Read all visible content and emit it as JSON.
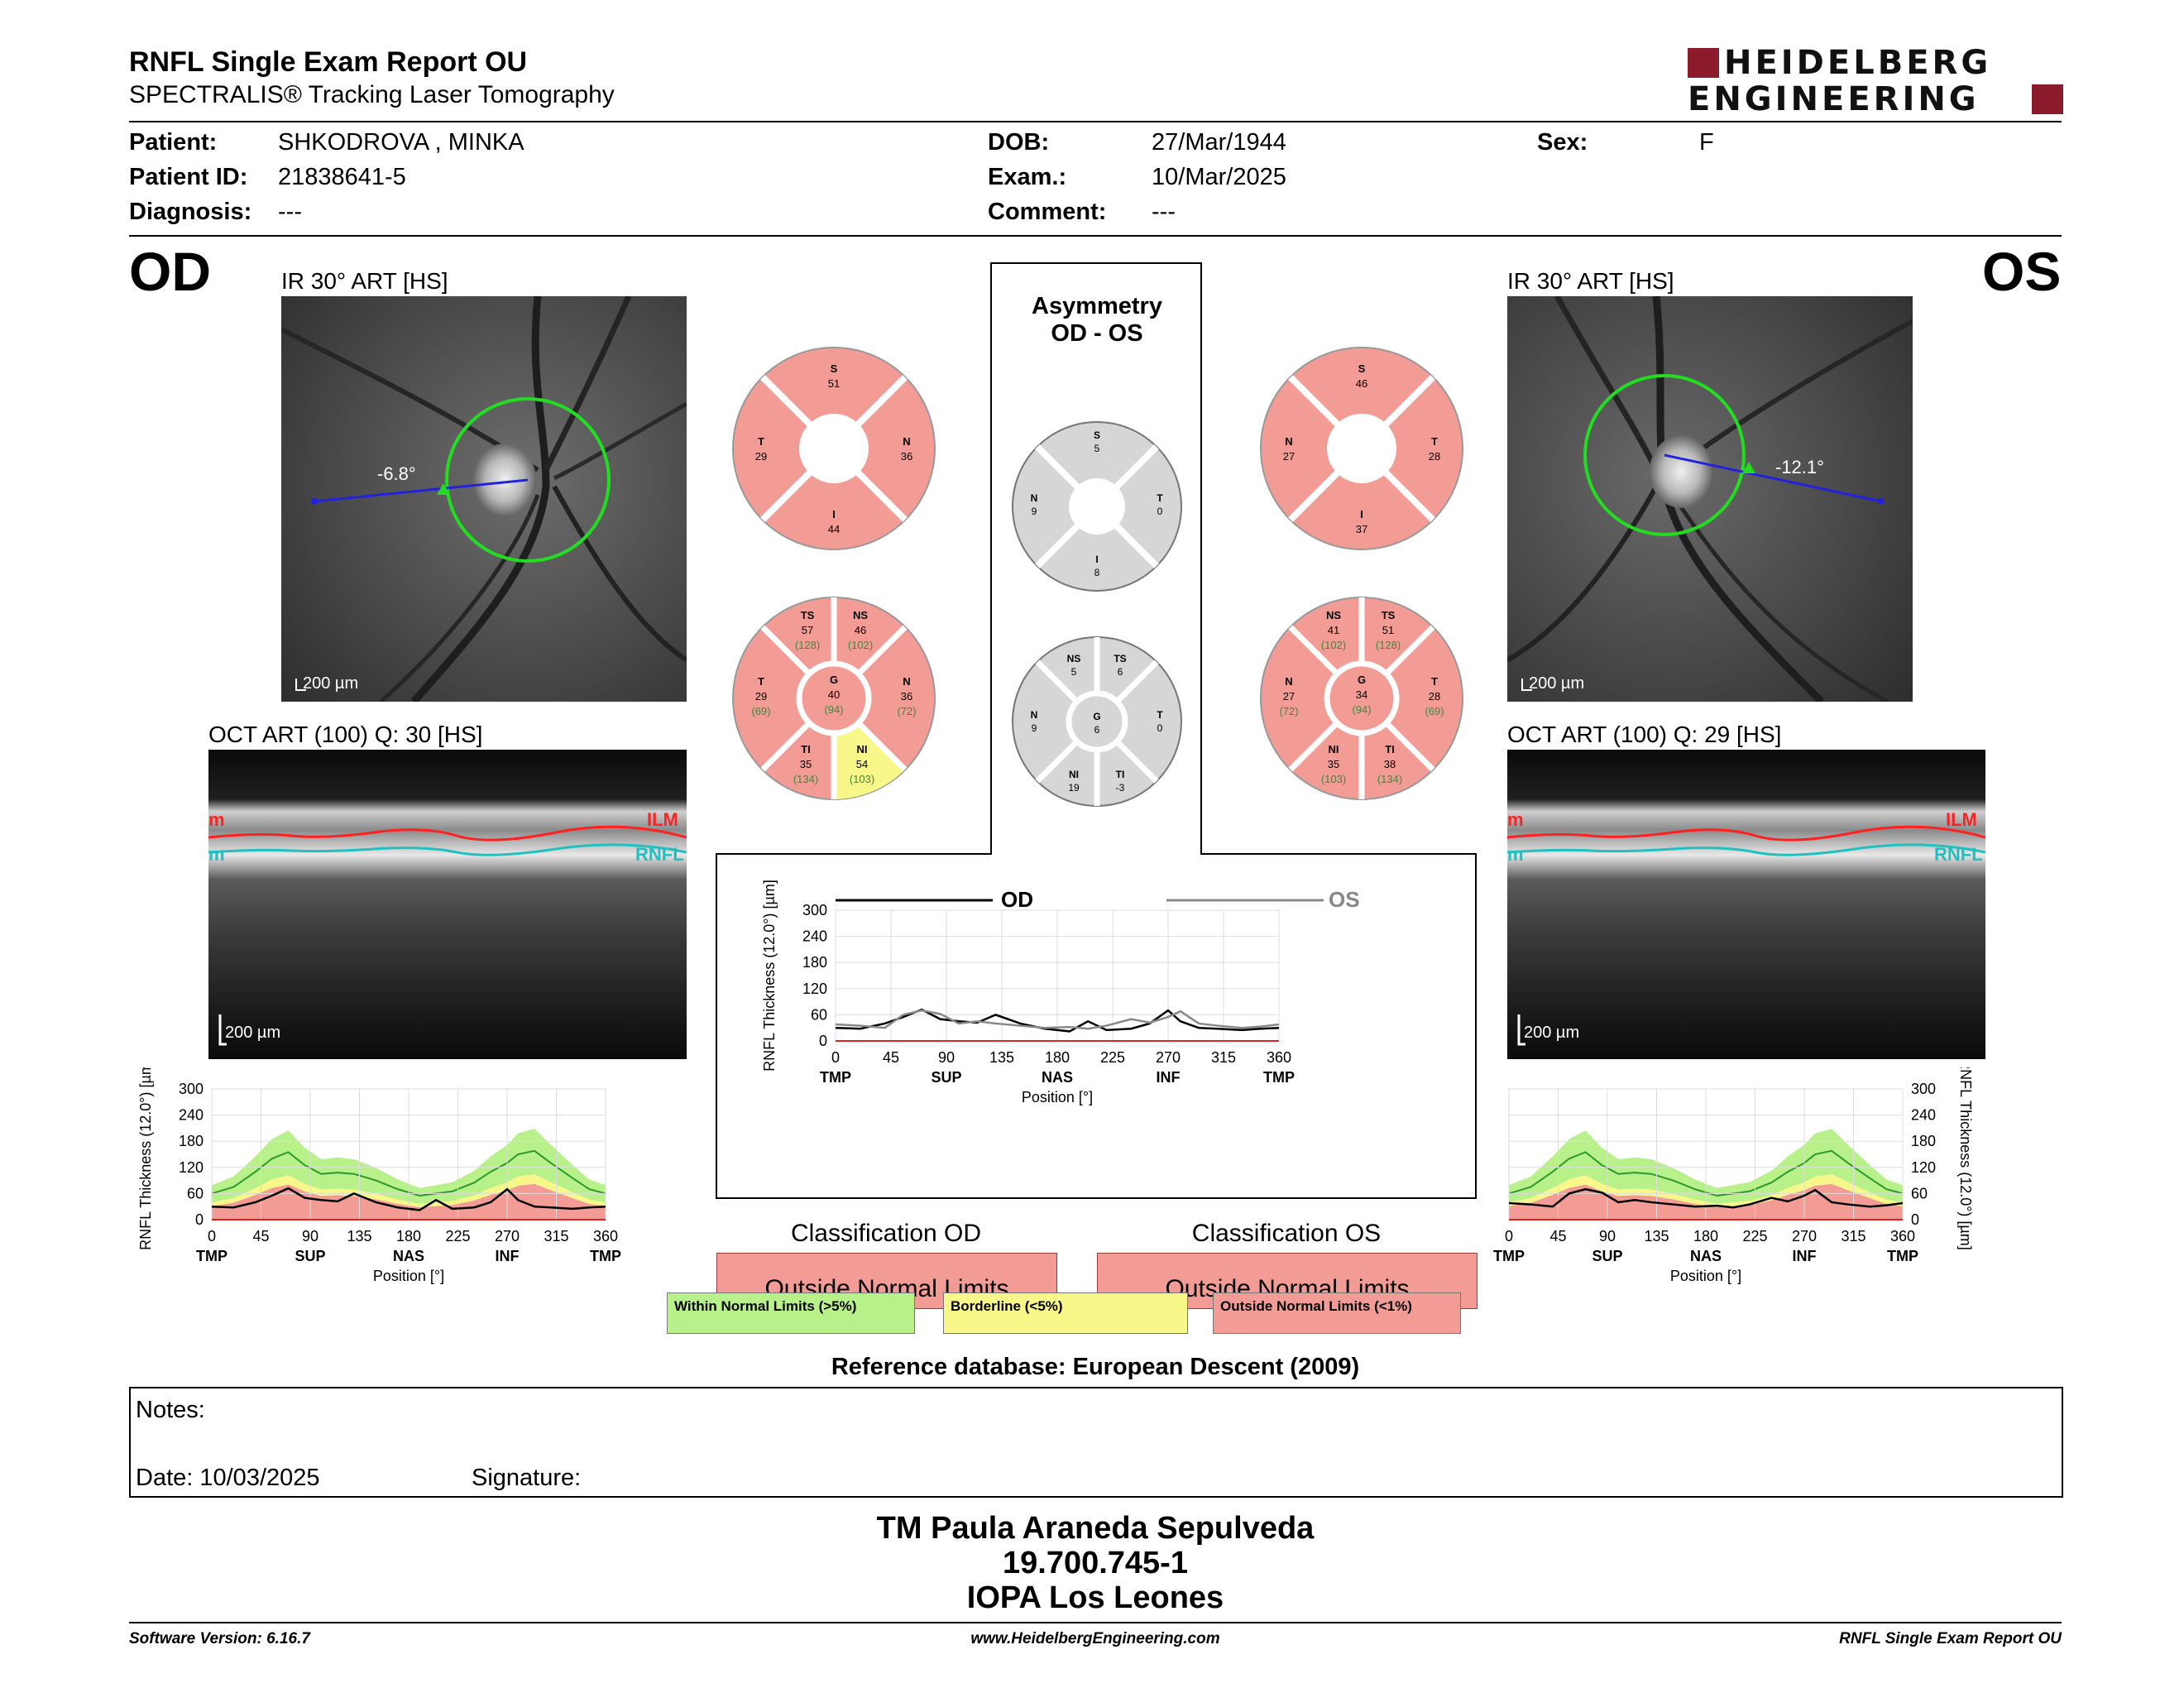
{
  "header": {
    "title": "RNFL Single Exam Report OU",
    "subtitle": "SPECTRALIS® Tracking Laser Tomography",
    "logo_line1": "HEIDELBERG",
    "logo_line2": "ENGINEERING"
  },
  "patient": {
    "patient_label": "Patient:",
    "patient_value": "SHKODROVA , MINKA",
    "id_label": "Patient ID:",
    "id_value": "21838641-5",
    "diagnosis_label": "Diagnosis:",
    "diagnosis_value": "---",
    "dob_label": "DOB:",
    "dob_value": "27/Mar/1944",
    "exam_label": "Exam.:",
    "exam_value": "10/Mar/2025",
    "comment_label": "Comment:",
    "comment_value": "---",
    "sex_label": "Sex:",
    "sex_value": "F"
  },
  "od": {
    "eye_label": "OD",
    "ir_title": "IR 30° ART [HS]",
    "angle": "-6.8°",
    "scale": "200 µm",
    "oct_title": "OCT ART (100) Q: 30 [HS]",
    "oct_scale": "200 µm",
    "ilm": "ILM",
    "rnfl": "RNFL",
    "seg_m": "m",
    "quad": {
      "S": "51",
      "N": "36",
      "I": "44",
      "T": "29"
    },
    "sectors": {
      "TS": {
        "v": "57",
        "r": "(128)"
      },
      "NS": {
        "v": "46",
        "r": "(102)"
      },
      "N": {
        "v": "36",
        "r": "(72)"
      },
      "NI": {
        "v": "54",
        "r": "(103)"
      },
      "TI": {
        "v": "35",
        "r": "(134)"
      },
      "T": {
        "v": "29",
        "r": "(69)"
      },
      "G": {
        "v": "40",
        "r": "(94)"
      }
    },
    "classification_title": "Classification OD",
    "classification": "Outside Normal Limits"
  },
  "os": {
    "eye_label": "OS",
    "ir_title": "IR 30° ART [HS]",
    "angle": "-12.1°",
    "scale": "200 µm",
    "oct_title": "OCT ART (100) Q: 29 [HS]",
    "oct_scale": "200 µm",
    "ilm": "ILM",
    "rnfl": "RNFL",
    "seg_m": "m",
    "quad": {
      "S": "46",
      "N": "27",
      "I": "37",
      "T": "28"
    },
    "sectors": {
      "NS": {
        "v": "41",
        "r": "(102)"
      },
      "TS": {
        "v": "51",
        "r": "(128)"
      },
      "T": {
        "v": "28",
        "r": "(69)"
      },
      "TI": {
        "v": "38",
        "r": "(134)"
      },
      "NI": {
        "v": "35",
        "r": "(103)"
      },
      "N": {
        "v": "27",
        "r": "(72)"
      },
      "G": {
        "v": "34",
        "r": "(94)"
      }
    },
    "classification_title": "Classification OS",
    "classification": "Outside Normal Limits"
  },
  "asymmetry": {
    "title1": "Asymmetry",
    "title2": "OD - OS",
    "quad": {
      "S": "5",
      "T": "0",
      "I": "8",
      "N": "9"
    },
    "sectors": {
      "NS": "5",
      "TS": "6",
      "T": "0",
      "TI": "-3",
      "NI": "19",
      "N": "9",
      "G": "6"
    }
  },
  "charts_text": {
    "ylabel": "RNFL Thickness (12.0°) [µm]",
    "xlabel": "Position [°]",
    "od_legend": "OD",
    "os_legend": "OS",
    "cat_tmp": "TMP",
    "cat_sup": "SUP",
    "cat_nas": "NAS",
    "cat_inf": "INF"
  },
  "chart_data": [
    {
      "type": "line",
      "id": "od-thickness-profile",
      "x_ticks": [
        0,
        45,
        90,
        135,
        180,
        225,
        270,
        315,
        360
      ],
      "y_ticks": [
        0,
        60,
        120,
        180,
        240,
        300
      ],
      "xlim": [
        0,
        360
      ],
      "ylim": [
        0,
        300
      ],
      "x": [
        0,
        20,
        40,
        55,
        70,
        85,
        100,
        115,
        130,
        150,
        170,
        190,
        205,
        220,
        240,
        255,
        270,
        280,
        295,
        310,
        330,
        345,
        360
      ],
      "series": [
        {
          "values": [
            30,
            28,
            40,
            55,
            72,
            50,
            45,
            42,
            60,
            40,
            28,
            22,
            45,
            25,
            28,
            40,
            70,
            45,
            30,
            28,
            25,
            28,
            30
          ]
        }
      ],
      "normal_mean": [
        60,
        75,
        110,
        140,
        155,
        125,
        105,
        108,
        105,
        90,
        70,
        55,
        60,
        65,
        85,
        110,
        130,
        150,
        158,
        130,
        95,
        70,
        60
      ],
      "categories": [
        "TMP",
        "SUP",
        "NAS",
        "INF",
        "TMP"
      ]
    },
    {
      "type": "line",
      "id": "asymmetry-profile",
      "x_ticks": [
        0,
        45,
        90,
        135,
        180,
        225,
        270,
        315,
        360
      ],
      "y_ticks": [
        0,
        60,
        120,
        180,
        240,
        300
      ],
      "xlim": [
        0,
        360
      ],
      "ylim": [
        0,
        300
      ],
      "x": [
        0,
        20,
        40,
        55,
        70,
        85,
        100,
        115,
        130,
        150,
        170,
        190,
        205,
        220,
        240,
        255,
        270,
        280,
        295,
        310,
        330,
        345,
        360
      ],
      "series": [
        {
          "name": "OD",
          "values": [
            30,
            28,
            40,
            55,
            72,
            50,
            45,
            42,
            60,
            40,
            28,
            22,
            45,
            25,
            28,
            40,
            70,
            45,
            30,
            28,
            25,
            28,
            30
          ]
        },
        {
          "name": "OS",
          "values": [
            38,
            35,
            30,
            60,
            70,
            62,
            40,
            45,
            40,
            35,
            30,
            32,
            28,
            35,
            50,
            42,
            55,
            68,
            40,
            35,
            30,
            33,
            38
          ]
        }
      ],
      "categories": [
        "TMP",
        "SUP",
        "NAS",
        "INF",
        "TMP"
      ]
    },
    {
      "type": "line",
      "id": "os-thickness-profile",
      "x_ticks": [
        0,
        45,
        90,
        135,
        180,
        225,
        270,
        315,
        360
      ],
      "y_ticks": [
        0,
        60,
        120,
        180,
        240,
        300
      ],
      "xlim": [
        0,
        360
      ],
      "ylim": [
        0,
        300
      ],
      "x": [
        0,
        20,
        40,
        55,
        70,
        85,
        100,
        115,
        130,
        150,
        170,
        190,
        205,
        220,
        240,
        255,
        270,
        280,
        295,
        310,
        330,
        345,
        360
      ],
      "series": [
        {
          "values": [
            38,
            35,
            30,
            60,
            70,
            62,
            40,
            45,
            40,
            35,
            30,
            32,
            28,
            35,
            50,
            42,
            55,
            68,
            40,
            35,
            30,
            33,
            38
          ]
        }
      ],
      "normal_mean": [
        60,
        75,
        110,
        140,
        155,
        125,
        105,
        108,
        105,
        90,
        70,
        55,
        60,
        65,
        85,
        110,
        130,
        150,
        158,
        130,
        95,
        70,
        60
      ],
      "categories": [
        "TMP",
        "SUP",
        "NAS",
        "INF",
        "TMP"
      ]
    }
  ],
  "legend": {
    "within": "Within Normal Limits (>5%)",
    "borderline": "Borderline (<5%)",
    "outside": "Outside Normal Limits (<1%)"
  },
  "reference": "Reference database: European Descent (2009)",
  "notes": {
    "notes_label": "Notes:",
    "date_label": "Date: 10/03/2025",
    "signature_label": "Signature:"
  },
  "footer": {
    "line1": "TM Paula Araneda Sepulveda",
    "line2": "19.700.745-1",
    "line3": "IOPA Los Leones",
    "software": "Software Version: 6.16.7",
    "website": "www.HeidelbergEngineering.com",
    "report_name": "RNFL Single Exam Report OU"
  },
  "colors": {
    "outside": "#f39c95",
    "borderline": "#f7f78a",
    "within": "#b8f08a",
    "grey_sector": "#d6d6d6",
    "green_circle": "#22dd22",
    "brand": "#8b1a2b"
  }
}
